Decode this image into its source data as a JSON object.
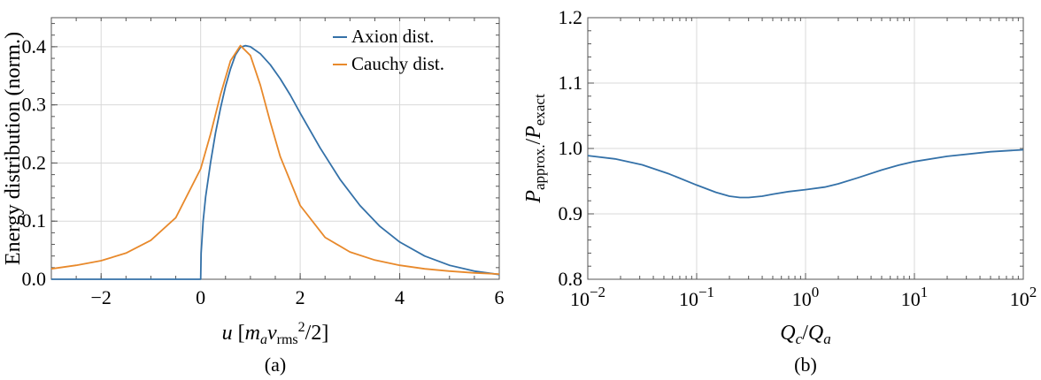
{
  "chart_data": [
    {
      "type": "line",
      "caption": "(a)",
      "xlim": [
        -3,
        6
      ],
      "ylim": [
        0,
        0.45
      ],
      "xticks": [
        -2,
        0,
        2,
        4,
        6
      ],
      "xtick_labels": [
        "−2",
        "0",
        "2",
        "4",
        "6"
      ],
      "yticks": [
        0.0,
        0.1,
        0.2,
        0.3,
        0.4
      ],
      "ytick_labels": [
        "0.0",
        "0.1",
        "0.2",
        "0.3",
        "0.4"
      ],
      "xlabel": {
        "u": "u",
        "open": " [",
        "ma_m": "m",
        "ma_a": "a",
        "v": "v",
        "rms": "rms",
        "sq": "2",
        "close": "/2]"
      },
      "ylabel": "Energy distribution (norm.)",
      "grid": true,
      "legend_position": "top-right",
      "colors": {
        "axion": "#3471a8",
        "cauchy": "#e8892b"
      },
      "series": [
        {
          "name": "Axion dist.",
          "x": [
            -3,
            0,
            0.01,
            0.05,
            0.1,
            0.2,
            0.3,
            0.4,
            0.5,
            0.6,
            0.7,
            0.8,
            0.9,
            1.0,
            1.2,
            1.4,
            1.6,
            1.8,
            2.0,
            2.4,
            2.8,
            3.2,
            3.6,
            4.0,
            4.5,
            5.0,
            5.5,
            6.0
          ],
          "y": [
            0,
            0,
            0.045,
            0.1,
            0.142,
            0.201,
            0.252,
            0.295,
            0.332,
            0.362,
            0.386,
            0.399,
            0.402,
            0.4,
            0.388,
            0.369,
            0.345,
            0.317,
            0.286,
            0.226,
            0.172,
            0.127,
            0.091,
            0.064,
            0.04,
            0.024,
            0.014,
            0.008
          ]
        },
        {
          "name": "Cauchy dist.",
          "x": [
            -3,
            -2.5,
            -2,
            -1.5,
            -1,
            -0.5,
            0,
            0.2,
            0.4,
            0.6,
            0.8,
            1.0,
            1.2,
            1.4,
            1.6,
            2.0,
            2.5,
            3.0,
            3.5,
            4.0,
            4.5,
            5.0,
            5.5,
            6.0
          ],
          "y": [
            0.018,
            0.024,
            0.032,
            0.045,
            0.067,
            0.106,
            0.19,
            0.25,
            0.318,
            0.376,
            0.402,
            0.385,
            0.334,
            0.27,
            0.211,
            0.127,
            0.072,
            0.047,
            0.033,
            0.024,
            0.018,
            0.014,
            0.011,
            0.009
          ]
        }
      ]
    },
    {
      "type": "line",
      "caption": "(b)",
      "xscale": "log",
      "xlim": [
        0.01,
        100
      ],
      "ylim": [
        0.8,
        1.2
      ],
      "xticks": [
        0.01,
        0.1,
        1,
        10,
        100
      ],
      "xtick_labels": [
        {
          "base": "10",
          "exp": "−2"
        },
        {
          "base": "10",
          "exp": "−1"
        },
        {
          "base": "10",
          "exp": "0"
        },
        {
          "base": "10",
          "exp": "1"
        },
        {
          "base": "10",
          "exp": "2"
        }
      ],
      "yticks": [
        0.8,
        0.9,
        1.0,
        1.1,
        1.2
      ],
      "ytick_labels": [
        "0.8",
        "0.9",
        "1.0",
        "1.1",
        "1.2"
      ],
      "xlabel": {
        "q1": "Q",
        "s1": "c",
        "slash": "/",
        "q2": "Q",
        "s2": "a"
      },
      "ylabel": {
        "p1": "P",
        "s1": "approx.",
        "slash": "/",
        "p2": "P",
        "s2": "exact"
      },
      "grid": true,
      "colors": {
        "line": "#3471a8"
      },
      "series": [
        {
          "x": [
            0.01,
            0.0178,
            0.0316,
            0.0562,
            0.1,
            0.15,
            0.2,
            0.25,
            0.3,
            0.4,
            0.5,
            0.7,
            1,
            1.5,
            2,
            3,
            5,
            7,
            10,
            20,
            50,
            100
          ],
          "y": [
            0.989,
            0.984,
            0.975,
            0.961,
            0.944,
            0.933,
            0.927,
            0.925,
            0.925,
            0.927,
            0.93,
            0.934,
            0.937,
            0.941,
            0.946,
            0.955,
            0.967,
            0.974,
            0.98,
            0.988,
            0.995,
            0.998
          ]
        }
      ]
    }
  ]
}
